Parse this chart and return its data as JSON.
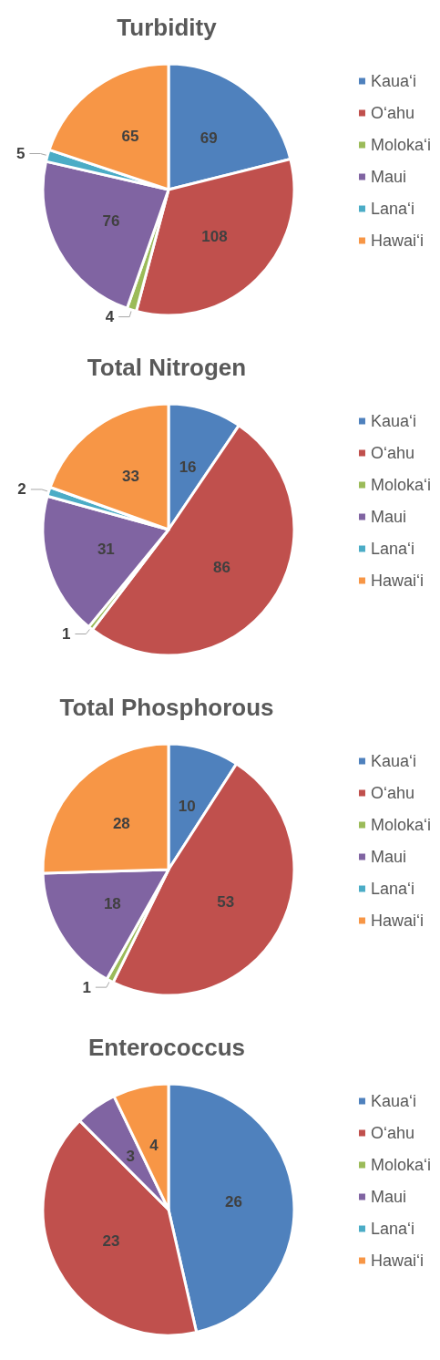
{
  "chart_data": [
    {
      "type": "pie",
      "title": "Turbidity",
      "categories": [
        "Kaua‘i",
        "O‘ahu",
        "Moloka‘i",
        "Maui",
        "Lana‘i",
        "Hawai‘i"
      ],
      "values": [
        69,
        108,
        4,
        76,
        5,
        65
      ],
      "colors": [
        "#4f81bd",
        "#c0504d",
        "#9bbb59",
        "#8064a2",
        "#4bacc6",
        "#f79646"
      ],
      "data_labels": true,
      "legend": "right"
    },
    {
      "type": "pie",
      "title": "Total Nitrogen",
      "categories": [
        "Kaua‘i",
        "O‘ahu",
        "Moloka‘i",
        "Maui",
        "Lana‘i",
        "Hawai‘i"
      ],
      "values": [
        16,
        86,
        1,
        31,
        2,
        33
      ],
      "colors": [
        "#4f81bd",
        "#c0504d",
        "#9bbb59",
        "#8064a2",
        "#4bacc6",
        "#f79646"
      ],
      "data_labels": true,
      "legend": "right"
    },
    {
      "type": "pie",
      "title": "Total Phosphorous",
      "categories": [
        "Kaua‘i",
        "O‘ahu",
        "Moloka‘i",
        "Maui",
        "Lana‘i",
        "Hawai‘i"
      ],
      "values": [
        10,
        53,
        1,
        18,
        null,
        28
      ],
      "colors": [
        "#4f81bd",
        "#c0504d",
        "#9bbb59",
        "#8064a2",
        "#4bacc6",
        "#f79646"
      ],
      "value_labels": [
        "10",
        "53",
        "1",
        "18",
        null,
        "28"
      ],
      "legend": "right"
    },
    {
      "type": "pie",
      "title": "Enterococcus",
      "categories": [
        "Kaua‘i",
        "O‘ahu",
        "Moloka‘i",
        "Maui",
        "Lana‘i",
        "Hawai‘i"
      ],
      "values": [
        26,
        23,
        null,
        3,
        null,
        4
      ],
      "colors": [
        "#4f81bd",
        "#c0504d",
        "#9bbb59",
        "#8064a2",
        "#4bacc6",
        "#f79646"
      ],
      "value_labels": [
        "26",
        "23",
        null,
        "3",
        null,
        "4"
      ],
      "legend": "right"
    }
  ]
}
